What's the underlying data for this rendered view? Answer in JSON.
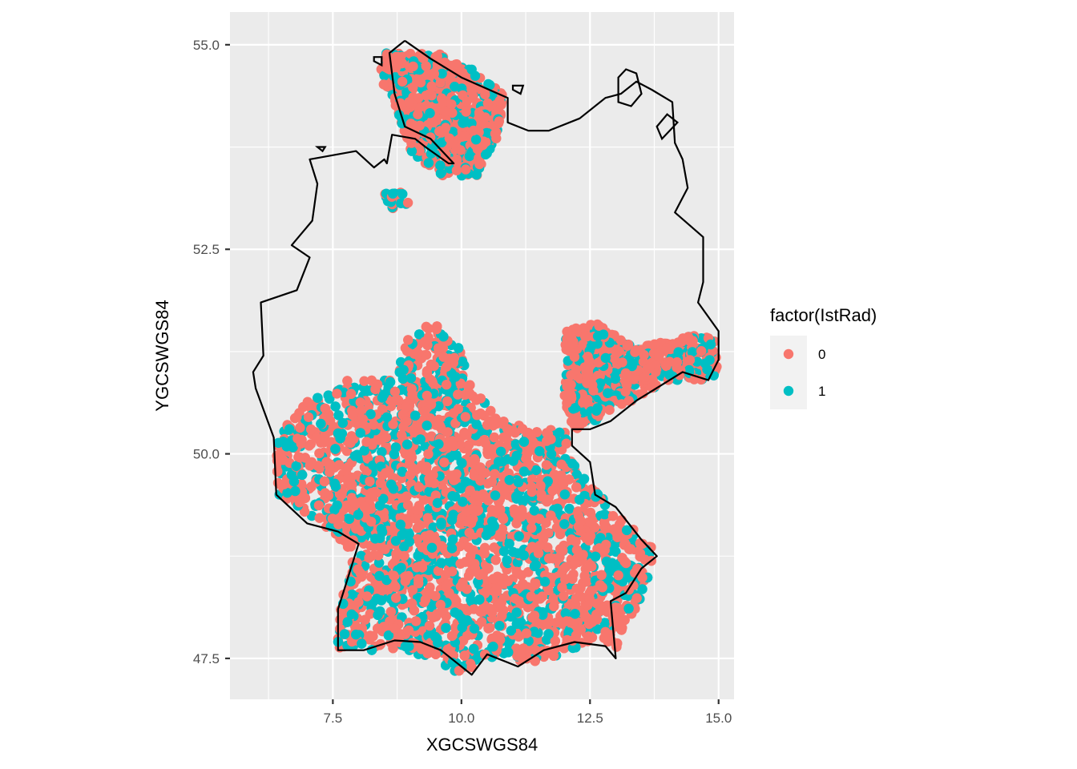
{
  "chart_data": {
    "type": "scatter",
    "title": "",
    "xlabel": "XGCSWGS84",
    "ylabel": "YGCSWGS84",
    "xlim": [
      5.5,
      15.3
    ],
    "ylim": [
      47.0,
      55.4
    ],
    "x_ticks": [
      {
        "value": 7.5,
        "label": "7.5"
      },
      {
        "value": 10.0,
        "label": "10.0"
      },
      {
        "value": 12.5,
        "label": "12.5"
      },
      {
        "value": 15.0,
        "label": "15.0"
      }
    ],
    "y_ticks": [
      {
        "value": 47.5,
        "label": "47.5"
      },
      {
        "value": 50.0,
        "label": "50.0"
      },
      {
        "value": 52.5,
        "label": "52.5"
      },
      {
        "value": 55.0,
        "label": "55.0"
      }
    ],
    "grid": true,
    "legend": {
      "title": "factor(IstRad)",
      "position": "right",
      "entries": [
        {
          "label": "0",
          "color": "#F8766D"
        },
        {
          "label": "1",
          "color": "#00BFC4"
        }
      ]
    },
    "series": [
      {
        "name": "0",
        "color": "#F8766D"
      },
      {
        "name": "1",
        "color": "#00BFC4"
      }
    ],
    "point_regions": [
      {
        "polygon": [
          [
            8.5,
            54.9
          ],
          [
            9.5,
            54.9
          ],
          [
            10.0,
            54.8
          ],
          [
            10.8,
            54.4
          ],
          [
            10.8,
            54.0
          ],
          [
            10.3,
            53.4
          ],
          [
            9.6,
            53.4
          ],
          [
            9.0,
            53.7
          ],
          [
            8.7,
            54.3
          ],
          [
            8.4,
            54.6
          ]
        ],
        "share_1": 0.35
      },
      {
        "polygon": [
          [
            9.0,
            51.5
          ],
          [
            9.5,
            51.6
          ],
          [
            10.0,
            51.3
          ],
          [
            10.1,
            50.9
          ],
          [
            10.8,
            50.4
          ],
          [
            11.5,
            50.3
          ],
          [
            12.1,
            50.3
          ],
          [
            12.1,
            50.0
          ],
          [
            12.5,
            49.6
          ],
          [
            13.0,
            49.3
          ],
          [
            13.8,
            48.8
          ],
          [
            13.6,
            48.4
          ],
          [
            13.0,
            47.6
          ],
          [
            12.5,
            47.7
          ],
          [
            11.4,
            47.4
          ],
          [
            10.5,
            47.5
          ],
          [
            10.0,
            47.3
          ],
          [
            9.0,
            47.6
          ],
          [
            8.6,
            47.6
          ],
          [
            7.6,
            47.6
          ],
          [
            7.6,
            48.0
          ],
          [
            7.9,
            48.8
          ],
          [
            7.2,
            49.2
          ],
          [
            6.4,
            49.5
          ],
          [
            6.4,
            50.2
          ],
          [
            6.9,
            50.6
          ],
          [
            7.8,
            50.9
          ],
          [
            8.7,
            50.9
          ]
        ],
        "share_1": 0.32
      },
      {
        "polygon": [
          [
            12.0,
            51.5
          ],
          [
            12.6,
            51.6
          ],
          [
            13.4,
            51.3
          ],
          [
            14.2,
            51.4
          ],
          [
            14.9,
            51.5
          ],
          [
            15.0,
            51.0
          ],
          [
            14.8,
            50.9
          ],
          [
            14.0,
            50.9
          ],
          [
            13.2,
            50.6
          ],
          [
            12.6,
            50.4
          ],
          [
            12.2,
            50.3
          ],
          [
            12.0,
            50.6
          ]
        ],
        "share_1": 0.35
      },
      {
        "polygon": [
          [
            8.5,
            53.2
          ],
          [
            8.9,
            53.2
          ],
          [
            9.0,
            53.0
          ],
          [
            8.6,
            53.0
          ]
        ],
        "share_1": 0.45
      }
    ],
    "boundary": [
      [
        8.9,
        55.05
      ],
      [
        9.4,
        54.83
      ],
      [
        10.0,
        54.6
      ],
      [
        10.9,
        54.35
      ],
      [
        10.9,
        54.05
      ],
      [
        11.3,
        53.95
      ],
      [
        11.7,
        53.95
      ],
      [
        12.3,
        54.1
      ],
      [
        12.8,
        54.35
      ],
      [
        13.1,
        54.4
      ],
      [
        13.4,
        54.55
      ],
      [
        13.7,
        54.45
      ],
      [
        14.1,
        54.3
      ],
      [
        14.15,
        53.8
      ],
      [
        14.3,
        53.6
      ],
      [
        14.4,
        53.25
      ],
      [
        14.15,
        52.95
      ],
      [
        14.7,
        52.65
      ],
      [
        14.7,
        52.1
      ],
      [
        14.6,
        51.85
      ],
      [
        15.0,
        51.5
      ],
      [
        15.0,
        51.15
      ],
      [
        14.8,
        50.9
      ],
      [
        14.3,
        51.0
      ],
      [
        13.4,
        50.65
      ],
      [
        12.9,
        50.4
      ],
      [
        12.5,
        50.3
      ],
      [
        12.15,
        50.3
      ],
      [
        12.15,
        50.1
      ],
      [
        12.5,
        49.9
      ],
      [
        12.6,
        49.5
      ],
      [
        13.0,
        49.35
      ],
      [
        13.5,
        48.95
      ],
      [
        13.8,
        48.75
      ],
      [
        13.5,
        48.6
      ],
      [
        13.2,
        48.3
      ],
      [
        12.9,
        48.2
      ],
      [
        13.0,
        47.5
      ],
      [
        12.8,
        47.65
      ],
      [
        12.2,
        47.7
      ],
      [
        11.6,
        47.6
      ],
      [
        11.1,
        47.4
      ],
      [
        10.5,
        47.55
      ],
      [
        10.2,
        47.3
      ],
      [
        9.6,
        47.6
      ],
      [
        9.2,
        47.7
      ],
      [
        8.7,
        47.72
      ],
      [
        8.1,
        47.6
      ],
      [
        7.6,
        47.6
      ],
      [
        7.6,
        48.1
      ],
      [
        8.0,
        48.9
      ],
      [
        7.6,
        49.05
      ],
      [
        7.0,
        49.15
      ],
      [
        6.4,
        49.5
      ],
      [
        6.35,
        50.2
      ],
      [
        6.0,
        50.8
      ],
      [
        5.95,
        51.0
      ],
      [
        6.15,
        51.2
      ],
      [
        6.1,
        51.85
      ],
      [
        6.8,
        52.0
      ],
      [
        7.05,
        52.4
      ],
      [
        6.7,
        52.55
      ],
      [
        7.1,
        52.85
      ],
      [
        7.2,
        53.3
      ],
      [
        7.05,
        53.6
      ],
      [
        7.95,
        53.7
      ],
      [
        8.3,
        53.5
      ],
      [
        8.5,
        53.6
      ],
      [
        8.55,
        53.55
      ],
      [
        8.65,
        53.9
      ],
      [
        9.1,
        53.85
      ],
      [
        9.3,
        53.75
      ],
      [
        9.75,
        53.55
      ],
      [
        9.85,
        53.55
      ],
      [
        9.4,
        53.85
      ],
      [
        8.9,
        54.0
      ],
      [
        8.7,
        54.4
      ],
      [
        8.6,
        54.9
      ],
      [
        8.8,
        55.0
      ],
      [
        8.9,
        55.05
      ]
    ],
    "islands": [
      [
        [
          13.05,
          54.6
        ],
        [
          13.2,
          54.7
        ],
        [
          13.4,
          54.65
        ],
        [
          13.5,
          54.4
        ],
        [
          13.3,
          54.25
        ],
        [
          13.05,
          54.3
        ],
        [
          13.05,
          54.6
        ]
      ],
      [
        [
          14.0,
          54.15
        ],
        [
          14.2,
          54.05
        ],
        [
          13.9,
          53.85
        ],
        [
          13.8,
          54.0
        ],
        [
          14.0,
          54.15
        ]
      ],
      [
        [
          11.0,
          54.5
        ],
        [
          11.2,
          54.5
        ],
        [
          11.15,
          54.4
        ],
        [
          11.0,
          54.45
        ],
        [
          11.0,
          54.5
        ]
      ],
      [
        [
          8.3,
          54.85
        ],
        [
          8.45,
          54.85
        ],
        [
          8.45,
          54.75
        ],
        [
          8.3,
          54.8
        ],
        [
          8.3,
          54.85
        ]
      ],
      [
        [
          7.2,
          53.75
        ],
        [
          7.35,
          53.75
        ],
        [
          7.3,
          53.7
        ],
        [
          7.2,
          53.75
        ]
      ]
    ]
  }
}
